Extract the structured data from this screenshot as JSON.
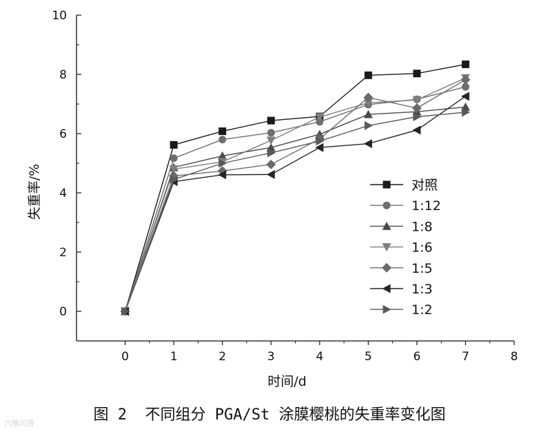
{
  "caption": "图 2  不同组分 PGA/St 涂膜樱桃的失重率变化图",
  "watermark": "六维问答",
  "chart_data": {
    "type": "line",
    "xlabel": "时间/d",
    "ylabel": "失重率/%",
    "xlim": [
      -1,
      8
    ],
    "ylim": [
      -1,
      10
    ],
    "xticks": [
      0,
      1,
      2,
      3,
      4,
      5,
      6,
      7,
      8
    ],
    "yticks": [
      0,
      2,
      4,
      6,
      8,
      10
    ],
    "legend_position": "center-right",
    "x": [
      0,
      1,
      2,
      3,
      4,
      5,
      6,
      7
    ],
    "series": [
      {
        "name": "对照",
        "marker": "square",
        "color": "#1a1a1a",
        "values": [
          0,
          5.62,
          6.08,
          6.44,
          6.58,
          7.97,
          8.03,
          8.34
        ]
      },
      {
        "name": "1:12",
        "marker": "circle",
        "color": "#6e6e6e",
        "values": [
          0,
          5.17,
          5.8,
          6.03,
          6.4,
          6.98,
          7.16,
          7.58
        ]
      },
      {
        "name": "1:8",
        "marker": "triangle-up",
        "color": "#4a4a4a",
        "values": [
          0,
          4.86,
          5.25,
          5.53,
          5.98,
          6.65,
          6.74,
          6.9
        ]
      },
      {
        "name": "1:6",
        "marker": "triangle-down",
        "color": "#7e7e7e",
        "values": [
          0,
          4.8,
          5.05,
          5.77,
          6.56,
          7.04,
          7.14,
          7.88
        ]
      },
      {
        "name": "1:5",
        "marker": "diamond",
        "color": "#6a6a6a",
        "values": [
          0,
          4.57,
          4.74,
          4.96,
          5.82,
          7.22,
          6.86,
          7.82
        ]
      },
      {
        "name": "1:3",
        "marker": "triangle-left",
        "color": "#252525",
        "values": [
          0,
          4.38,
          4.61,
          4.62,
          5.53,
          5.66,
          6.12,
          7.26
        ]
      },
      {
        "name": "1:2",
        "marker": "triangle-right",
        "color": "#5a5a5a",
        "values": [
          0,
          4.45,
          5.0,
          5.35,
          5.75,
          6.27,
          6.57,
          6.72
        ]
      }
    ]
  }
}
